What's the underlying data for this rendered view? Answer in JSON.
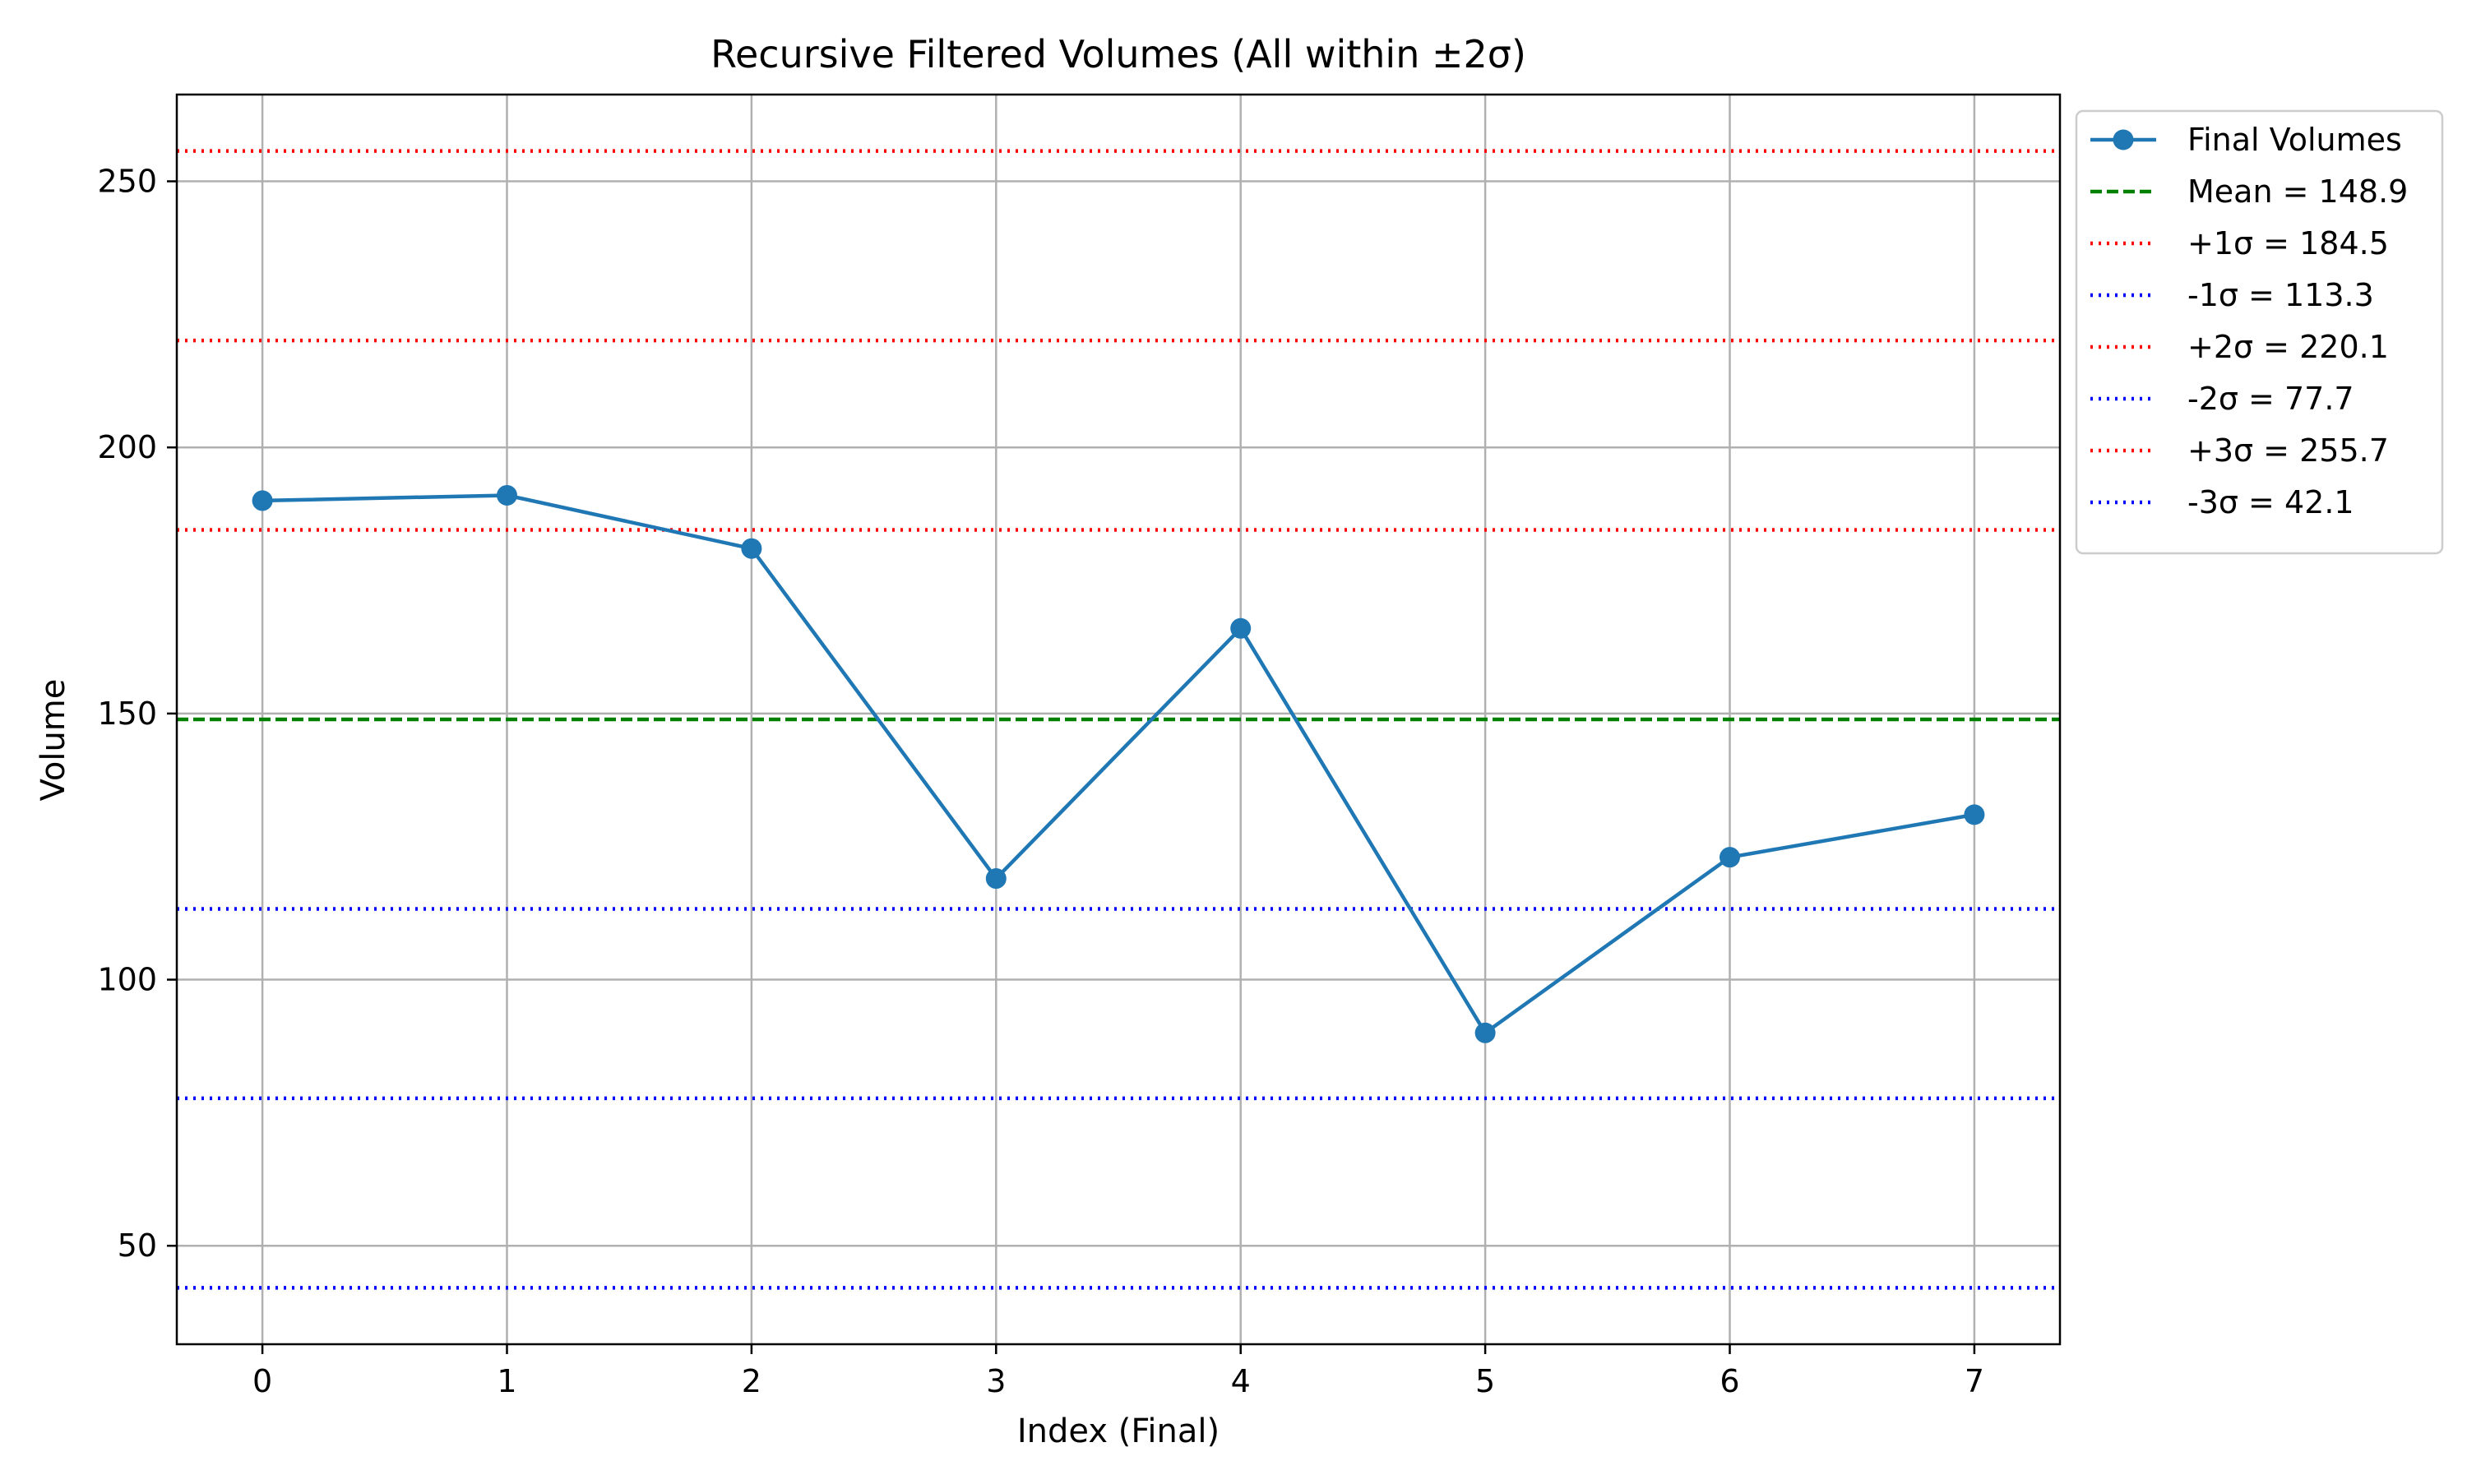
{
  "chart_data": {
    "type": "line",
    "title": "Recursive Filtered Volumes (All within ±2σ)",
    "xlabel": "Index (Final)",
    "ylabel": "Volume",
    "x": [
      0,
      1,
      2,
      3,
      4,
      5,
      6,
      7
    ],
    "xlim": [
      -0.35,
      7.35
    ],
    "ylim": [
      31.5,
      266.3
    ],
    "xticks": [
      0,
      1,
      2,
      3,
      4,
      5,
      6,
      7
    ],
    "yticks": [
      50,
      100,
      150,
      200,
      250
    ],
    "grid": true,
    "legend_position": "outside-upper-right",
    "series": [
      {
        "name": "Final Volumes",
        "values": [
          190,
          191,
          181,
          119,
          166,
          90,
          123,
          131
        ],
        "color": "#1f77b4",
        "style": "solid",
        "marker": "circle"
      }
    ],
    "reference_lines": [
      {
        "label": "Mean = 148.9",
        "value": 148.9,
        "color": "#008000",
        "style": "dashed"
      },
      {
        "label": "+1σ = 184.5",
        "value": 184.5,
        "color": "#ff0000",
        "style": "dotted"
      },
      {
        "label": "-1σ = 113.3",
        "value": 113.3,
        "color": "#0000ff",
        "style": "dotted"
      },
      {
        "label": "+2σ = 220.1",
        "value": 220.1,
        "color": "#ff0000",
        "style": "dotted"
      },
      {
        "label": "-2σ = 77.7",
        "value": 77.7,
        "color": "#0000ff",
        "style": "dotted"
      },
      {
        "label": "+3σ = 255.7",
        "value": 255.7,
        "color": "#ff0000",
        "style": "dotted"
      },
      {
        "label": "-3σ = 42.1",
        "value": 42.1,
        "color": "#0000ff",
        "style": "dotted"
      }
    ]
  }
}
